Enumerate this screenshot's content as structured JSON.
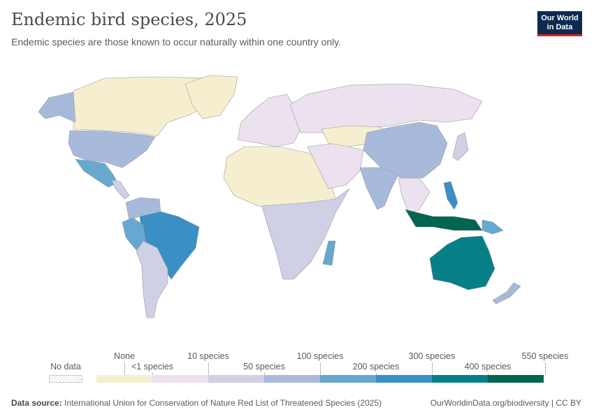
{
  "header": {
    "title": "Endemic bird species, 2025",
    "subtitle": "Endemic species are those known to occur naturally within one country only.",
    "logo": "Our World in Data"
  },
  "legend": {
    "no_data_label": "No data",
    "top_labels": [
      "None",
      "10 species",
      "100 species",
      "300 species",
      "550 species"
    ],
    "bottom_labels": [
      "<1 species",
      "50 species",
      "200 species",
      "400 species"
    ],
    "bins": [
      {
        "color": "#f6efcf"
      },
      {
        "color": "#ebe1ef"
      },
      {
        "color": "#cfd0e6"
      },
      {
        "color": "#a8badb"
      },
      {
        "color": "#66a8d0"
      },
      {
        "color": "#3a8fc4"
      },
      {
        "color": "#067f89"
      },
      {
        "color": "#01654f"
      }
    ]
  },
  "regions": [
    {
      "name": "canada",
      "color": "#f6efcf"
    },
    {
      "name": "greenland",
      "color": "#f6efcf"
    },
    {
      "name": "alaska",
      "color": "#a8badb"
    },
    {
      "name": "usa",
      "color": "#a8badb"
    },
    {
      "name": "mexico",
      "color": "#66a8d0"
    },
    {
      "name": "central-america",
      "color": "#cfd0e6"
    },
    {
      "name": "colombia-venezuela",
      "color": "#a8badb"
    },
    {
      "name": "brazil",
      "color": "#3a8fc4"
    },
    {
      "name": "peru",
      "color": "#66a8d0"
    },
    {
      "name": "southern-cone",
      "color": "#cfd0e6"
    },
    {
      "name": "europe",
      "color": "#ebe1ef"
    },
    {
      "name": "russia",
      "color": "#ebe1ef"
    },
    {
      "name": "north-africa",
      "color": "#f6efcf"
    },
    {
      "name": "sub-saharan-africa",
      "color": "#cfd0e6"
    },
    {
      "name": "madagascar",
      "color": "#66a8d0"
    },
    {
      "name": "middle-east",
      "color": "#ebe1ef"
    },
    {
      "name": "central-asia",
      "color": "#f6efcf"
    },
    {
      "name": "china",
      "color": "#a8badb"
    },
    {
      "name": "india",
      "color": "#a8badb"
    },
    {
      "name": "southeast-asia",
      "color": "#ebe1ef"
    },
    {
      "name": "japan",
      "color": "#cfd0e6"
    },
    {
      "name": "philippines",
      "color": "#3a8fc4"
    },
    {
      "name": "indonesia",
      "color": "#01654f"
    },
    {
      "name": "papua-new-guinea",
      "color": "#66a8d0"
    },
    {
      "name": "australia",
      "color": "#067f89"
    },
    {
      "name": "new-zealand",
      "color": "#a8badb"
    }
  ],
  "footer": {
    "source_label": "Data source:",
    "source": "International Union for Conservation of Nature Red List of Threatened Species (2025)",
    "link": "OurWorldinData.org/biodiversity | CC BY"
  }
}
